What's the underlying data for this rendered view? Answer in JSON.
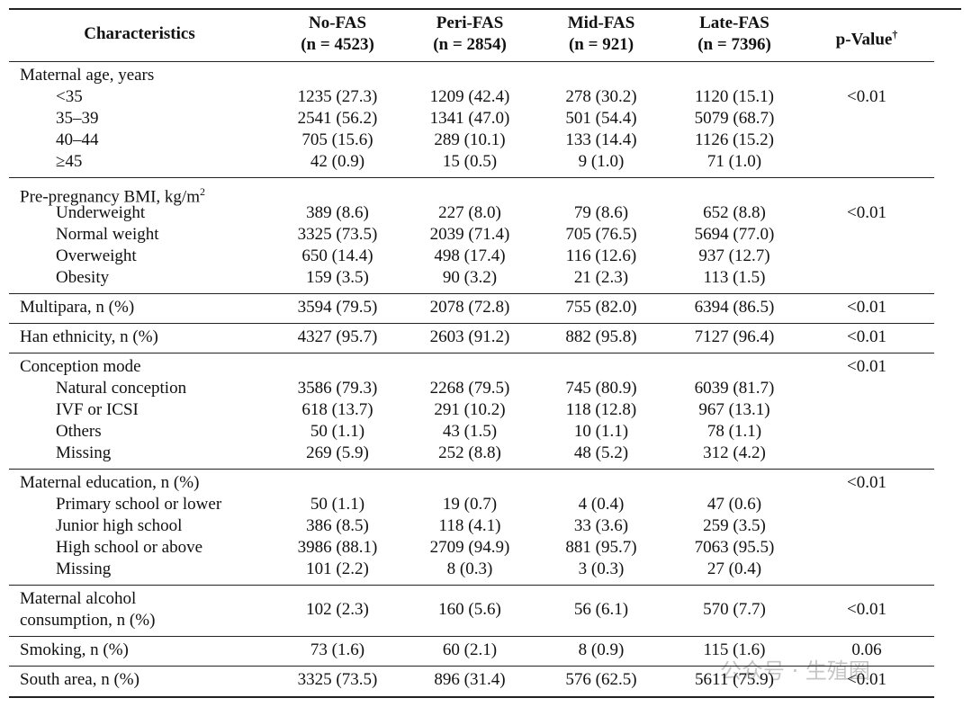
{
  "table": {
    "header": [
      {
        "name": "Characteristics"
      },
      {
        "name": "No-FAS",
        "n": "(n = 4523)"
      },
      {
        "name": "Peri-FAS",
        "n": "(n = 2854)"
      },
      {
        "name": "Mid-FAS",
        "n": "(n = 921)"
      },
      {
        "name": "Late-FAS",
        "n": "(n = 7396)"
      },
      {
        "name": "p-Value",
        "sup": "†"
      }
    ],
    "groups": [
      {
        "label": "Maternal age, years",
        "rows": [
          {
            "label": "<35",
            "values": [
              "1235 (27.3)",
              "1209 (42.4)",
              "278 (30.2)",
              "1120 (15.1)"
            ],
            "p": "<0.01"
          },
          {
            "label": "35–39",
            "values": [
              "2541 (56.2)",
              "1341 (47.0)",
              "501 (54.4)",
              "5079 (68.7)"
            ]
          },
          {
            "label": "40–44",
            "values": [
              "705 (15.6)",
              "289 (10.1)",
              "133 (14.4)",
              "1126 (15.2)"
            ]
          },
          {
            "label": "≥45",
            "values": [
              "42 (0.9)",
              "15 (0.5)",
              "9 (1.0)",
              "71 (1.0)"
            ]
          }
        ]
      },
      {
        "label": "Pre-pregnancy BMI, kg/m",
        "sup": "2",
        "rows": [
          {
            "label": "Underweight",
            "values": [
              "389 (8.6)",
              "227 (8.0)",
              "79 (8.6)",
              "652 (8.8)"
            ],
            "p": "<0.01"
          },
          {
            "label": "Normal weight",
            "values": [
              "3325 (73.5)",
              "2039 (71.4)",
              "705 (76.5)",
              "5694 (77.0)"
            ]
          },
          {
            "label": "Overweight",
            "values": [
              "650 (14.4)",
              "498 (17.4)",
              "116 (12.6)",
              "937 (12.7)"
            ]
          },
          {
            "label": "Obesity",
            "values": [
              "159 (3.5)",
              "90 (3.2)",
              "21 (2.3)",
              "113 (1.5)"
            ]
          }
        ]
      },
      {
        "label": "Multipara, n (%)",
        "values": [
          "3594 (79.5)",
          "2078 (72.8)",
          "755 (82.0)",
          "6394 (86.5)"
        ],
        "p": "<0.01"
      },
      {
        "label": "Han ethnicity, n (%)",
        "values": [
          "4327 (95.7)",
          "2603 (91.2)",
          "882 (95.8)",
          "7127 (96.4)"
        ],
        "p": "<0.01"
      },
      {
        "label": "Conception mode",
        "p": "<0.01",
        "rows": [
          {
            "label": "Natural conception",
            "values": [
              "3586 (79.3)",
              "2268 (79.5)",
              "745 (80.9)",
              "6039 (81.7)"
            ]
          },
          {
            "label": "IVF or ICSI",
            "values": [
              "618 (13.7)",
              "291 (10.2)",
              "118 (12.8)",
              "967 (13.1)"
            ]
          },
          {
            "label": "Others",
            "values": [
              "50 (1.1)",
              "43 (1.5)",
              "10 (1.1)",
              "78 (1.1)"
            ]
          },
          {
            "label": "Missing",
            "values": [
              "269 (5.9)",
              "252 (8.8)",
              "48 (5.2)",
              "312 (4.2)"
            ]
          }
        ]
      },
      {
        "label": "Maternal education, n (%)",
        "p": "<0.01",
        "rows": [
          {
            "label": "Primary school or lower",
            "values": [
              "50 (1.1)",
              "19 (0.7)",
              "4 (0.4)",
              "47 (0.6)"
            ]
          },
          {
            "label": "Junior high school",
            "values": [
              "386 (8.5)",
              "118 (4.1)",
              "33 (3.6)",
              "259 (3.5)"
            ]
          },
          {
            "label": "High school or above",
            "values": [
              "3986 (88.1)",
              "2709 (94.9)",
              "881 (95.7)",
              "7063 (95.5)"
            ]
          },
          {
            "label": "Missing",
            "values": [
              "101 (2.2)",
              "8 (0.3)",
              "3 (0.3)",
              "27 (0.4)"
            ]
          }
        ]
      },
      {
        "label": [
          "Maternal alcohol",
          "consumption, n (%)"
        ],
        "values": [
          "102 (2.3)",
          "160 (5.6)",
          "56 (6.1)",
          "570 (7.7)"
        ],
        "p": "<0.01"
      },
      {
        "label": "Smoking, n (%)",
        "values": [
          "73 (1.6)",
          "60 (2.1)",
          "8 (0.9)",
          "115 (1.6)"
        ],
        "p": "0.06"
      },
      {
        "label": "South area, n (%)",
        "values": [
          "3325 (73.5)",
          "896 (31.4)",
          "576 (62.5)",
          "5611 (75.9)"
        ],
        "p": "<0.01"
      }
    ]
  },
  "watermark": "公众号 · 生殖圈"
}
